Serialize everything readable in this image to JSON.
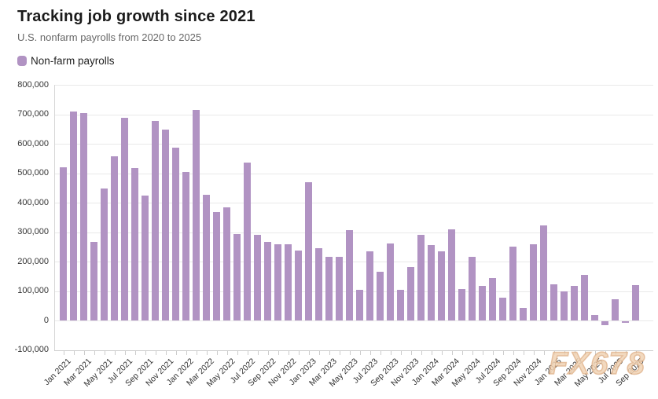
{
  "header": {
    "title": "Tracking job growth since 2021",
    "subtitle": "U.S. nonfarm payrolls from 2020 to 2025"
  },
  "legend": {
    "items": [
      {
        "label": "Non-farm payrolls",
        "color": "#b193c3"
      }
    ]
  },
  "watermark": {
    "text": "FX678",
    "color": "#e8c2a0"
  },
  "chart_data": {
    "type": "bar",
    "title": "Tracking job growth since 2021",
    "subtitle": "U.S. nonfarm payrolls from 2020 to 2025",
    "grid": "horizontal",
    "legend_position": "top-left",
    "bar_color": "#b193c3",
    "ylim": [
      -100000,
      800000
    ],
    "y_tick_step": 100000,
    "y_tick_labels": [
      "800,000",
      "700,000",
      "600,000",
      "500,000",
      "400,000",
      "300,000",
      "200,000",
      "100,000",
      "0",
      "-100,000"
    ],
    "x_tick_every": 2,
    "x_tick_labels": [
      "Jan 2021",
      "Mar 2021",
      "May 2021",
      "Jul 2021",
      "Sep 2021",
      "Nov 2021",
      "Jan 2022",
      "Mar 2022",
      "May 2022",
      "Jul 2022",
      "Sep 2022",
      "Nov 2022",
      "Jan 2023",
      "Mar 2023",
      "May 2023",
      "Jul 2023",
      "Sep 2023",
      "Nov 2023",
      "Jan 2024",
      "Mar 2024",
      "May 2024",
      "Jul 2024",
      "Sep 2024",
      "Nov 2024",
      "Jan 2025",
      "Mar 2025",
      "May 2025",
      "Jul 2025",
      "Sep 2025"
    ],
    "x": [
      "Jan 2021",
      "Feb 2021",
      "Mar 2021",
      "Apr 2021",
      "May 2021",
      "Jun 2021",
      "Jul 2021",
      "Aug 2021",
      "Sep 2021",
      "Oct 2021",
      "Nov 2021",
      "Dec 2021",
      "Jan 2022",
      "Feb 2022",
      "Mar 2022",
      "Apr 2022",
      "May 2022",
      "Jun 2022",
      "Jul 2022",
      "Aug 2022",
      "Sep 2022",
      "Oct 2022",
      "Nov 2022",
      "Dec 2022",
      "Jan 2023",
      "Feb 2023",
      "Mar 2023",
      "Apr 2023",
      "May 2023",
      "Jun 2023",
      "Jul 2023",
      "Aug 2023",
      "Sep 2023",
      "Oct 2023",
      "Nov 2023",
      "Dec 2023",
      "Jan 2024",
      "Feb 2024",
      "Mar 2024",
      "Apr 2024",
      "May 2024",
      "Jun 2024",
      "Jul 2024",
      "Aug 2024",
      "Sep 2024",
      "Oct 2024",
      "Nov 2024",
      "Dec 2024",
      "Jan 2025",
      "Feb 2025",
      "Mar 2025",
      "Apr 2025",
      "May 2025",
      "Jun 2025",
      "Jul 2025",
      "Aug 2025",
      "Sep 2025"
    ],
    "series": [
      {
        "name": "Non-farm payrolls",
        "color": "#b193c3",
        "values": [
          520000,
          710000,
          704000,
          266000,
          447000,
          557000,
          689000,
          517000,
          424000,
          677000,
          647000,
          588000,
          504000,
          714000,
          428000,
          368000,
          384000,
          293000,
          537000,
          290000,
          267000,
          260000,
          258000,
          237000,
          470000,
          246000,
          217000,
          216000,
          306000,
          105000,
          236000,
          165000,
          262000,
          105000,
          182000,
          290000,
          256000,
          236000,
          310000,
          108000,
          216000,
          118000,
          144000,
          78000,
          252000,
          44000,
          258000,
          323000,
          122000,
          98000,
          117000,
          156000,
          19000,
          -13000,
          72000,
          -4000,
          119000
        ]
      }
    ]
  }
}
